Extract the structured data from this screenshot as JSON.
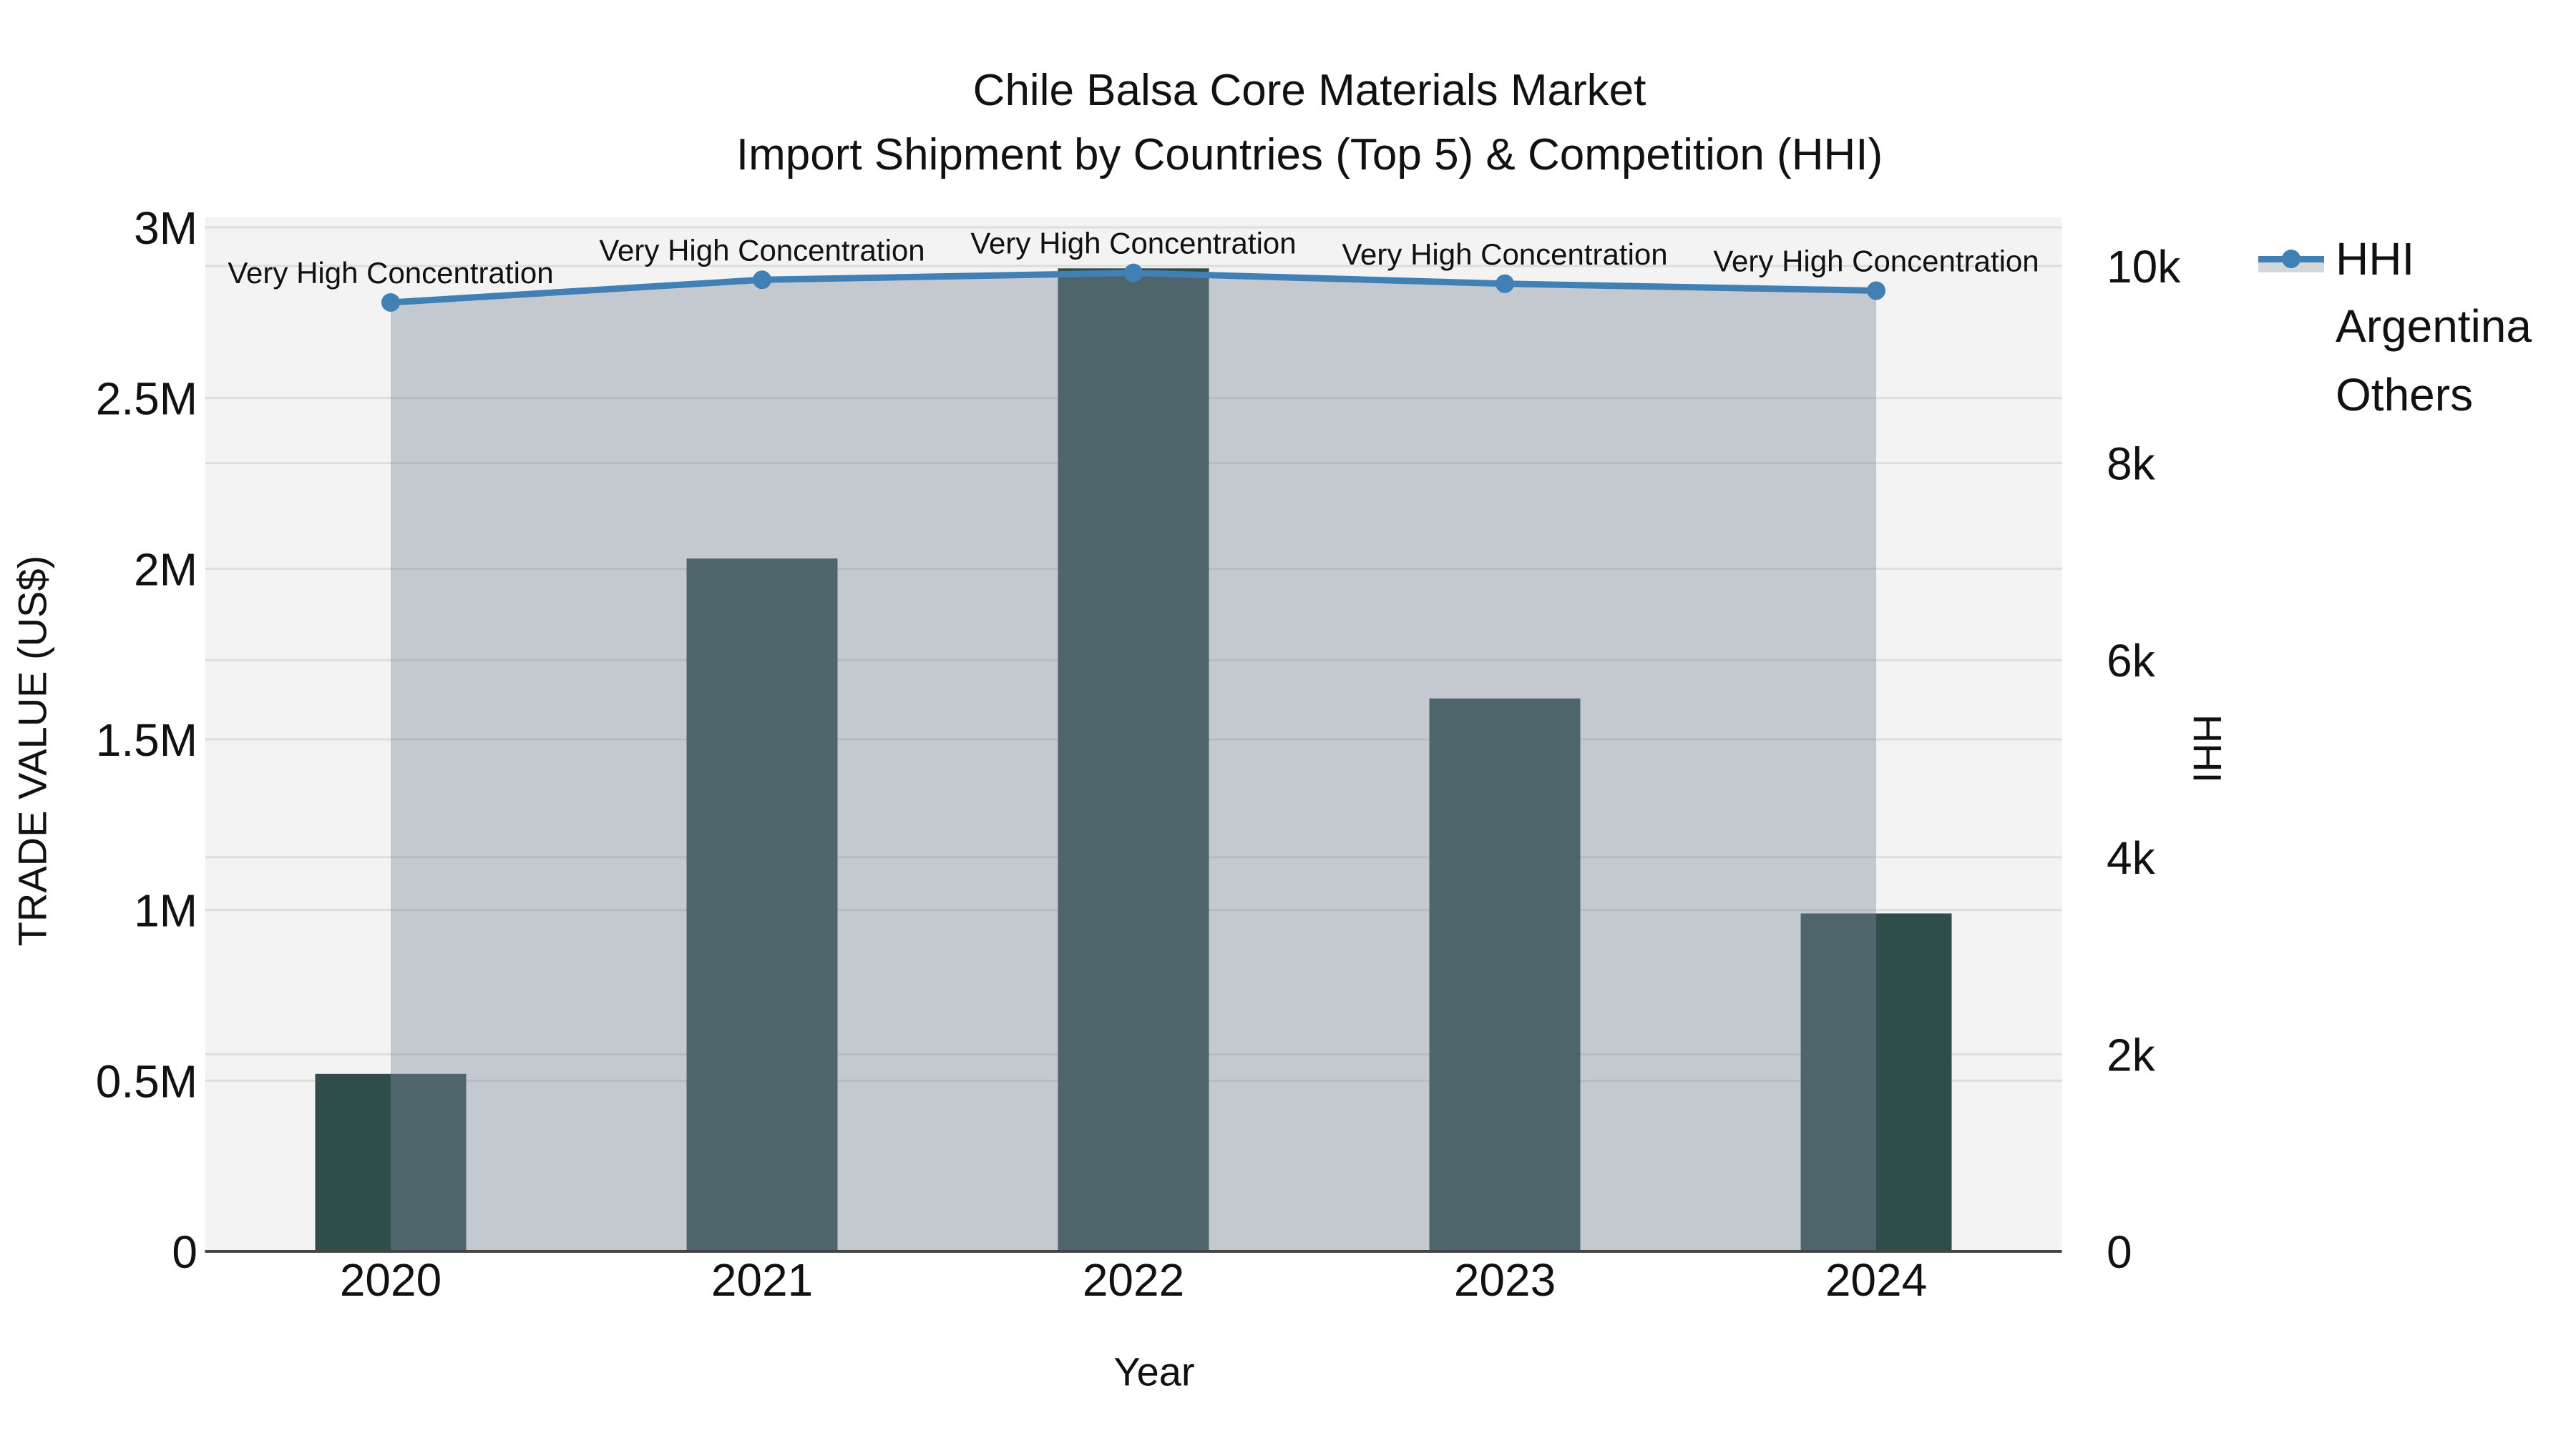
{
  "title": {
    "line1": "Chile Balsa Core Materials Market",
    "line2": "Import Shipment by Countries (Top 5) & Competition (HHI)"
  },
  "axes": {
    "x": {
      "title": "Year",
      "ticks": [
        "2020",
        "2021",
        "2022",
        "2023",
        "2024"
      ]
    },
    "y_left": {
      "title": "TRADE VALUE (US$)",
      "ticks": [
        "0",
        "0.5M",
        "1M",
        "1.5M",
        "2M",
        "2.5M",
        "3M"
      ]
    },
    "y_right": {
      "title": "HHI",
      "ticks": [
        "0",
        "2k",
        "4k",
        "6k",
        "8k",
        "10k"
      ]
    }
  },
  "legend": {
    "items": [
      {
        "label": "HHI",
        "swatch": "line-area",
        "color": "#4080B5"
      },
      {
        "label": "Argentina",
        "swatch": "square",
        "color": "#2F4E4B"
      },
      {
        "label": "Others",
        "swatch": "square",
        "color": "#ABABAB"
      }
    ]
  },
  "colors": {
    "bar": "#2F4E4B",
    "hhi_line": "#4080B5",
    "hhi_area_fill": "rgba(125,138,155,0.40)",
    "plot_background": "#F3F3F3",
    "gridline": "#DDDDDD",
    "zero_line": "#444444",
    "text": "#111111"
  },
  "chart_data": {
    "type": "bar+line",
    "title": "Chile Balsa Core Materials Market — Import Shipment by Countries (Top 5) & Competition (HHI)",
    "categories": [
      "2020",
      "2021",
      "2022",
      "2023",
      "2024"
    ],
    "series": [
      {
        "name": "Argentina",
        "type": "bar",
        "yaxis": "left",
        "color": "#2F4E4B",
        "values": [
          520000,
          2030000,
          2880000,
          1620000,
          990000
        ]
      },
      {
        "name": "Others",
        "type": "bar",
        "yaxis": "left",
        "color": "#ABABAB",
        "values": []
      }
    ],
    "line_series": {
      "name": "HHI",
      "type": "line+area",
      "yaxis": "right",
      "color": "#4080B5",
      "area_fill": "rgba(125,138,155,0.40)",
      "marker": "circle",
      "values": [
        9630,
        9860,
        9930,
        9820,
        9750
      ]
    },
    "annotations": [
      {
        "text": "Very High Concentration",
        "category": "2020"
      },
      {
        "text": "Very High Concentration",
        "category": "2021"
      },
      {
        "text": "Very High Concentration",
        "category": "2022"
      },
      {
        "text": "Very High Concentration",
        "category": "2023"
      },
      {
        "text": "Very High Concentration",
        "category": "2024"
      }
    ],
    "xlabel": "Year",
    "ylabel_left": "TRADE VALUE (US$)",
    "ylabel_right": "HHI",
    "ylim_left": [
      0,
      3000000
    ],
    "ylim_right": [
      0,
      10000
    ],
    "ytick_values_left": [
      0,
      500000,
      1000000,
      1500000,
      2000000,
      2500000,
      3000000
    ],
    "ytick_values_right": [
      0,
      2000,
      4000,
      6000,
      8000,
      10000
    ],
    "grid": true,
    "legend_position": "right-top"
  }
}
